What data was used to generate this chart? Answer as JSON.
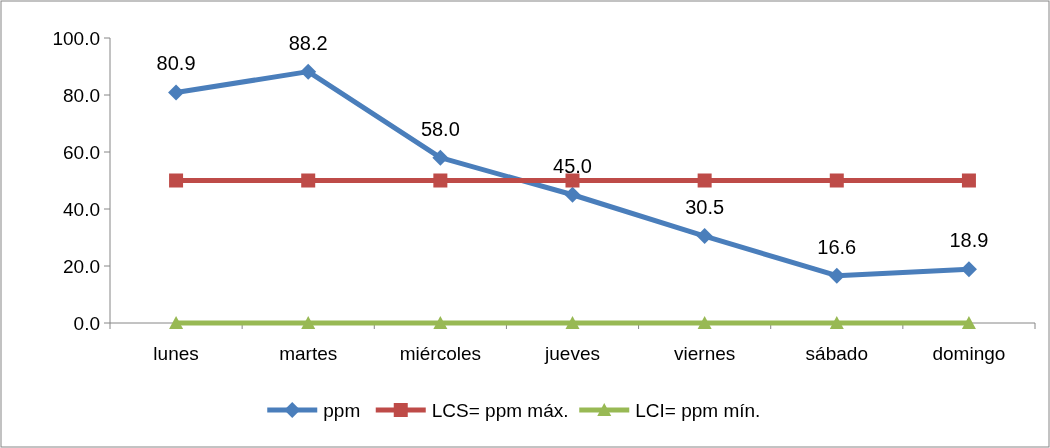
{
  "chart_data": {
    "type": "line",
    "categories": [
      "lunes",
      "martes",
      "miércoles",
      "jueves",
      "viernes",
      "sábado",
      "domingo"
    ],
    "series": [
      {
        "name": "ppm",
        "color": "#4a7ebb",
        "marker": "diamond",
        "values": [
          80.9,
          88.2,
          58.0,
          45.0,
          30.5,
          16.6,
          18.9
        ],
        "value_labels": [
          "80.9",
          "88.2",
          "58.0",
          "45.0",
          "30.5",
          "16.6",
          "18.9"
        ]
      },
      {
        "name": "LCS= ppm máx.",
        "color": "#be4b48",
        "marker": "square",
        "values": [
          50,
          50,
          50,
          50,
          50,
          50,
          50
        ]
      },
      {
        "name": "LCI= ppm mín.",
        "color": "#98b954",
        "marker": "triangle",
        "values": [
          0,
          0,
          0,
          0,
          0,
          0,
          0
        ]
      }
    ],
    "ylim": [
      0,
      100
    ],
    "yticks": [
      {
        "value": 0,
        "label": "0.0"
      },
      {
        "value": 20,
        "label": "20.0"
      },
      {
        "value": 40,
        "label": "40.0"
      },
      {
        "value": 60,
        "label": "60.0"
      },
      {
        "value": 80,
        "label": "80.0"
      },
      {
        "value": 100,
        "label": "100.0"
      }
    ],
    "grid": false,
    "legend": "bottom"
  }
}
